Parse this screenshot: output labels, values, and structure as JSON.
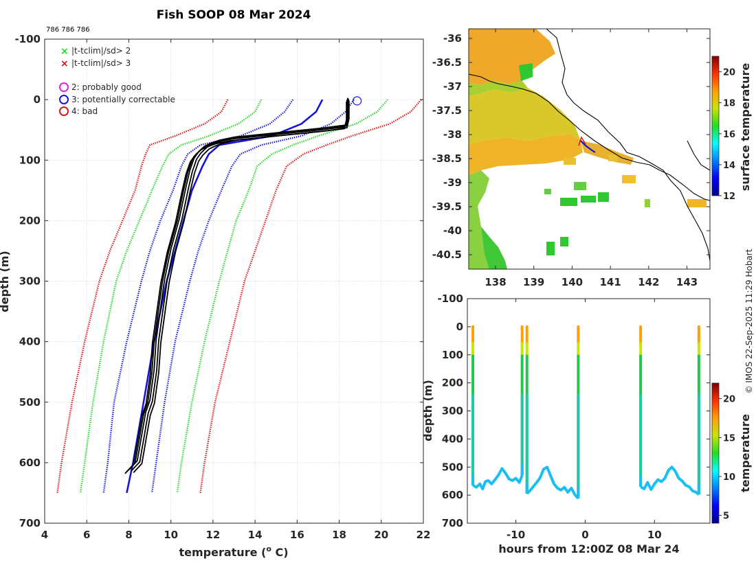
{
  "title": "Fish SOOP 08 Mar 2024",
  "ids_text": "786 786 786",
  "credit": "© IMOS 22-Sep-2025 11:29 Hobart",
  "colors": {
    "black": "#000000",
    "blue": "#1414dc",
    "green": "#20dc20",
    "red": "#dc1414",
    "magenta": "#e020e0",
    "profile_blue": "#1414dc"
  },
  "legend": {
    "crosses": [
      {
        "label": "|t-tclim|/sd> 2",
        "color": "#20dc20"
      },
      {
        "label": "|t-tclim|/sd> 3",
        "color": "#dc1414"
      }
    ],
    "circles": [
      {
        "label": "2: probably good",
        "color": "#e020e0"
      },
      {
        "label": "3: potentially correctable",
        "color": "#1414dc"
      },
      {
        "label": "4: bad",
        "color": "#dc1414"
      }
    ]
  },
  "chart_data": [
    {
      "type": "line",
      "name": "profile",
      "xlabel": "temperature (° C)",
      "ylabel": "depth (m)",
      "xlim": [
        4,
        22
      ],
      "ylim": [
        -100,
        700
      ],
      "y_reversed": true,
      "xticks": [
        4,
        6,
        8,
        10,
        12,
        14,
        16,
        18,
        20,
        22
      ],
      "yticks": [
        -100,
        0,
        100,
        200,
        300,
        400,
        500,
        600,
        700
      ],
      "climatology_depths": [
        0,
        20,
        40,
        60,
        75,
        90,
        110,
        150,
        200,
        250,
        300,
        400,
        500,
        600,
        650
      ],
      "climatology": [
        {
          "name": "mean -3sd",
          "color": "#dc1414",
          "style": "dotted",
          "values": [
            12.7,
            12.4,
            11.6,
            10.2,
            9.0,
            8.8,
            8.6,
            8.3,
            7.7,
            7.1,
            6.6,
            5.9,
            5.3,
            4.8,
            4.6
          ]
        },
        {
          "name": "mean -2sd",
          "color": "#20dc20",
          "style": "dotted",
          "values": [
            14.3,
            14.0,
            13.2,
            11.8,
            10.5,
            9.9,
            9.6,
            9.1,
            8.5,
            7.9,
            7.4,
            6.8,
            6.3,
            5.9,
            5.7
          ]
        },
        {
          "name": "mean -1sd",
          "color": "#1414dc",
          "style": "dotted",
          "values": [
            15.8,
            15.4,
            14.7,
            13.3,
            11.4,
            10.8,
            10.5,
            10.1,
            9.5,
            9.0,
            8.6,
            7.9,
            7.3,
            7.0,
            6.8
          ]
        },
        {
          "name": "mean",
          "color": "#1414dc",
          "style": "solid",
          "values": [
            17.2,
            16.9,
            16.2,
            14.8,
            12.3,
            11.8,
            11.5,
            11.0,
            10.6,
            10.2,
            9.8,
            9.2,
            8.7,
            8.2,
            7.9
          ]
        },
        {
          "name": "mean +1sd",
          "color": "#1414dc",
          "style": "dotted",
          "values": [
            18.7,
            18.3,
            17.6,
            16.2,
            14.3,
            13.3,
            12.9,
            12.4,
            11.8,
            11.3,
            10.9,
            10.2,
            9.7,
            9.3,
            9.1
          ]
        },
        {
          "name": "mean +2sd",
          "color": "#20dc20",
          "style": "dotted",
          "values": [
            20.3,
            19.8,
            18.8,
            17.0,
            15.8,
            14.8,
            14.1,
            13.7,
            13.1,
            12.7,
            12.3,
            11.6,
            11.0,
            10.5,
            10.3
          ]
        },
        {
          "name": "mean +3sd",
          "color": "#dc1414",
          "style": "dotted",
          "values": [
            21.9,
            21.4,
            20.4,
            18.6,
            17.4,
            16.3,
            15.5,
            15.0,
            14.5,
            14.0,
            13.5,
            12.8,
            12.1,
            11.6,
            11.4
          ]
        }
      ],
      "observed": {
        "depths": [
          0,
          10,
          30,
          45,
          50,
          55,
          60,
          65,
          70,
          75,
          80,
          90,
          100,
          120,
          150,
          200,
          250,
          300,
          350,
          400,
          450,
          500,
          520,
          540,
          560,
          580,
          600,
          615
        ],
        "temps": [
          18.4,
          18.4,
          18.4,
          18.3,
          17.2,
          15.8,
          14.4,
          13.0,
          12.3,
          11.9,
          11.6,
          11.3,
          11.1,
          10.9,
          10.7,
          10.4,
          10.0,
          9.7,
          9.5,
          9.3,
          9.2,
          9.0,
          8.8,
          8.7,
          8.6,
          8.5,
          8.4,
          8.0
        ]
      },
      "flag_circle": {
        "temp": 18.85,
        "depth": 2
      }
    },
    {
      "type": "heatmap",
      "name": "map",
      "colorbar_label": "surface temperature",
      "clim": [
        12,
        21
      ],
      "colorbar_ticks": [
        12,
        14,
        16,
        18,
        20
      ],
      "xlim": [
        137.3,
        143.6
      ],
      "ylim": [
        -40.8,
        -35.8
      ],
      "xticks": [
        138,
        139,
        140,
        141,
        142,
        143
      ],
      "yticks": [
        -36,
        -36.5,
        -37,
        -37.5,
        -38,
        -38.5,
        -39,
        -39.5,
        -40,
        -40.5
      ]
    },
    {
      "type": "scatter",
      "name": "time_depth",
      "xlabel": "hours from 12:00Z 08 Mar 24",
      "ylabel": "depth (m)",
      "xlim": [
        -17,
        18
      ],
      "ylim": [
        -100,
        700
      ],
      "y_reversed": true,
      "xticks": [
        -10,
        0,
        10
      ],
      "yticks": [
        -100,
        0,
        100,
        200,
        300,
        400,
        500,
        600,
        700
      ],
      "colorbar_label": "temperature",
      "clim": [
        4,
        22
      ],
      "colorbar_ticks": [
        5,
        10,
        15,
        20
      ],
      "profile_hours": [
        -16.2,
        -9.1,
        -8.4,
        -1.0,
        8.0,
        16.4
      ],
      "bottom_trace": {
        "hours": [
          -16.2,
          -15.7,
          -15.2,
          -14.8,
          -14.4,
          -14.0,
          -13.5,
          -13.0,
          -12.5,
          -12.0,
          -11.5,
          -11.0,
          -10.5,
          -10.0,
          -9.5,
          -9.1
        ],
        "depths": [
          565,
          572,
          560,
          578,
          552,
          548,
          560,
          545,
          528,
          505,
          522,
          542,
          548,
          540,
          555,
          530
        ]
      },
      "bottom_trace_2": {
        "hours": [
          -8.4,
          -8.0,
          -7.5,
          -7.0,
          -6.5,
          -6.0,
          -5.5,
          -5.0,
          -4.5,
          -4.0,
          -3.5,
          -3.0,
          -2.5,
          -2.0,
          -1.5,
          -1.0
        ],
        "depths": [
          595,
          585,
          570,
          555,
          538,
          508,
          500,
          530,
          560,
          575,
          582,
          572,
          590,
          575,
          598,
          612
        ]
      },
      "bottom_trace_3": {
        "hours": [
          8.0,
          8.5,
          9.0,
          9.5,
          10.0,
          10.5,
          11.0,
          11.5,
          12.0,
          12.5,
          13.0,
          13.5,
          14.0,
          14.5,
          15.0,
          15.5,
          16.0,
          16.4
        ],
        "depths": [
          570,
          578,
          555,
          580,
          560,
          545,
          552,
          540,
          512,
          500,
          515,
          540,
          550,
          565,
          570,
          585,
          590,
          598
        ]
      }
    }
  ]
}
